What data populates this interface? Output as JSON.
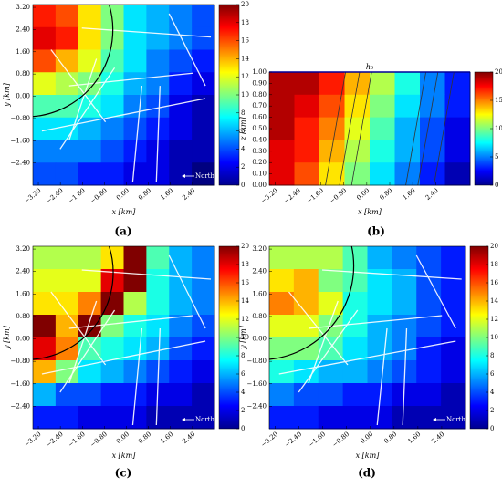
{
  "chart_data": [
    {
      "type": "heatmap",
      "panel_label": "(a)",
      "xlabel": "x [km]",
      "ylabel": "y [km]",
      "annotation": "North",
      "colormap": "jet",
      "xlim": [
        -3.4,
        3.2
      ],
      "ylim": [
        -3.2,
        3.3
      ],
      "clim": [
        0,
        20
      ],
      "xticks": [
        {
          "value": -3.2,
          "label": "−3.20"
        },
        {
          "value": -2.4,
          "label": "−2.40"
        },
        {
          "value": -1.6,
          "label": "−1.60"
        },
        {
          "value": -0.8,
          "label": "−0.80"
        },
        {
          "value": 0,
          "label": "0.00"
        },
        {
          "value": 0.8,
          "label": "0.80"
        },
        {
          "value": 1.6,
          "label": "1.60"
        },
        {
          "value": 2.4,
          "label": "2.40"
        }
      ],
      "yticks": [
        {
          "value": 3.2,
          "label": "3.20"
        },
        {
          "value": 2.4,
          "label": "2.40"
        },
        {
          "value": 1.6,
          "label": "1.60"
        },
        {
          "value": 0.8,
          "label": "0.80"
        },
        {
          "value": 0,
          "label": "0.00"
        },
        {
          "value": -0.8,
          "label": "−0.80"
        },
        {
          "value": -1.6,
          "label": "−1.60"
        },
        {
          "value": -2.4,
          "label": "−2.40"
        }
      ],
      "cticks": [
        0,
        2,
        4,
        6,
        8,
        10,
        12,
        14,
        16,
        18,
        20
      ],
      "z": [
        [
          17,
          16,
          13,
          10,
          7,
          6,
          5,
          4
        ],
        [
          18,
          17,
          13,
          10,
          7,
          6,
          5,
          4
        ],
        [
          16,
          14,
          12,
          9,
          7,
          5,
          4,
          3
        ],
        [
          12,
          11,
          10,
          8,
          6,
          5,
          3,
          2
        ],
        [
          9,
          9,
          8,
          7,
          5,
          4,
          2,
          1
        ],
        [
          7,
          7,
          6,
          5,
          4,
          3,
          2,
          1
        ],
        [
          5,
          5,
          5,
          4,
          3,
          2,
          1,
          1
        ],
        [
          4,
          4,
          3,
          3,
          2,
          2,
          1,
          0
        ]
      ]
    },
    {
      "type": "heatmap",
      "panel_label": "(b)",
      "title": "h₀",
      "xlabel": "x [km]",
      "ylabel": "z [km]",
      "colormap": "jet",
      "xlim": [
        -3.4,
        3.6
      ],
      "ylim": [
        0,
        1
      ],
      "clim": [
        0,
        20
      ],
      "xticks": [
        {
          "value": -3.2,
          "label": "−3.20"
        },
        {
          "value": -2.4,
          "label": "−2.40"
        },
        {
          "value": -1.6,
          "label": "−1.60"
        },
        {
          "value": -0.8,
          "label": "−0.80"
        },
        {
          "value": 0,
          "label": "0.00"
        },
        {
          "value": 0.8,
          "label": "0.80"
        },
        {
          "value": 1.6,
          "label": "1.60"
        },
        {
          "value": 2.4,
          "label": "2.40"
        }
      ],
      "yticks": [
        {
          "value": 1,
          "label": "1.00"
        },
        {
          "value": 0.9,
          "label": "0.90"
        },
        {
          "value": 0.8,
          "label": "0.80"
        },
        {
          "value": 0.7,
          "label": "0.70"
        },
        {
          "value": 0.6,
          "label": "0.60"
        },
        {
          "value": 0.5,
          "label": "0.50"
        },
        {
          "value": 0.4,
          "label": "0.40"
        },
        {
          "value": 0.3,
          "label": "0.30"
        },
        {
          "value": 0.2,
          "label": "0.20"
        },
        {
          "value": 0.1,
          "label": "0.10"
        },
        {
          "value": 0,
          "label": "0.00"
        }
      ],
      "cticks": [
        0,
        5,
        10,
        15,
        20
      ],
      "z": [
        [
          19,
          19,
          17,
          14,
          11,
          8,
          5,
          3
        ],
        [
          19,
          18,
          16,
          13,
          10,
          7,
          5,
          3
        ],
        [
          19,
          17,
          15,
          12,
          9,
          6,
          4,
          2
        ],
        [
          18,
          17,
          14,
          11,
          8,
          6,
          4,
          2
        ],
        [
          18,
          16,
          13,
          10,
          7,
          5,
          3,
          1
        ]
      ]
    },
    {
      "type": "heatmap",
      "panel_label": "(c)",
      "xlabel": "x [km]",
      "ylabel": "y [km]",
      "annotation": "North",
      "colormap": "jet",
      "xlim": [
        -3.4,
        3.2
      ],
      "ylim": [
        -3.2,
        3.3
      ],
      "clim": [
        0,
        20
      ],
      "xticks": [
        {
          "value": -3.2,
          "label": "−3.20"
        },
        {
          "value": -2.4,
          "label": "−2.40"
        },
        {
          "value": -1.6,
          "label": "−1.60"
        },
        {
          "value": -0.8,
          "label": "−0.80"
        },
        {
          "value": 0,
          "label": "0.00"
        },
        {
          "value": 0.8,
          "label": "0.80"
        },
        {
          "value": 1.6,
          "label": "1.60"
        },
        {
          "value": 2.4,
          "label": "2.40"
        }
      ],
      "yticks": [
        {
          "value": 3.2,
          "label": "3.20"
        },
        {
          "value": 2.4,
          "label": "2.40"
        },
        {
          "value": 1.6,
          "label": "1.60"
        },
        {
          "value": 0.8,
          "label": "0.80"
        },
        {
          "value": 0,
          "label": "0.00"
        },
        {
          "value": -0.8,
          "label": "−0.80"
        },
        {
          "value": -1.6,
          "label": "−1.60"
        },
        {
          "value": -2.4,
          "label": "−2.40"
        }
      ],
      "cticks": [
        0,
        2,
        4,
        6,
        8,
        10,
        12,
        14,
        16,
        18,
        20
      ],
      "z": [
        [
          11,
          11,
          11,
          13,
          20,
          9,
          6,
          5
        ],
        [
          12,
          12,
          12,
          18,
          20,
          8,
          6,
          5
        ],
        [
          13,
          13,
          15,
          20,
          11,
          8,
          6,
          5
        ],
        [
          20,
          14,
          20,
          10,
          8,
          7,
          5,
          4
        ],
        [
          18,
          15,
          9,
          8,
          7,
          6,
          4,
          3
        ],
        [
          14,
          10,
          7,
          6,
          5,
          4,
          3,
          2
        ],
        [
          6,
          4,
          4,
          3,
          3,
          2,
          2,
          1
        ],
        [
          3,
          3,
          2,
          2,
          2,
          1,
          1,
          1
        ]
      ]
    },
    {
      "type": "heatmap",
      "panel_label": "(d)",
      "xlabel": "x [km]",
      "ylabel": "y [km]",
      "annotation": "North",
      "colormap": "jet",
      "xlim": [
        -3.4,
        3.2
      ],
      "ylim": [
        -3.2,
        3.3
      ],
      "clim": [
        0,
        20
      ],
      "xticks": [
        {
          "value": -3.2,
          "label": "−3.20"
        },
        {
          "value": -2.4,
          "label": "−2.40"
        },
        {
          "value": -1.6,
          "label": "−1.60"
        },
        {
          "value": -0.8,
          "label": "−0.80"
        },
        {
          "value": 0,
          "label": "0.00"
        },
        {
          "value": 0.8,
          "label": "0.80"
        },
        {
          "value": 1.6,
          "label": "1.60"
        },
        {
          "value": 2.4,
          "label": "2.40"
        }
      ],
      "yticks": [
        {
          "value": 3.2,
          "label": "3.20"
        },
        {
          "value": 2.4,
          "label": "2.40"
        },
        {
          "value": 1.6,
          "label": "1.60"
        },
        {
          "value": 0.8,
          "label": "0.80"
        },
        {
          "value": 0,
          "label": "0.00"
        },
        {
          "value": -0.8,
          "label": "−0.80"
        },
        {
          "value": -1.6,
          "label": "−1.60"
        },
        {
          "value": -2.4,
          "label": "−2.40"
        }
      ],
      "cticks": [
        0,
        2,
        4,
        6,
        8,
        10,
        12,
        14,
        16,
        18,
        20
      ],
      "z": [
        [
          11,
          11,
          11,
          9,
          6,
          5,
          4,
          3
        ],
        [
          13,
          14,
          10,
          9,
          7,
          6,
          4,
          3
        ],
        [
          15,
          14,
          12,
          8,
          7,
          6,
          4,
          3
        ],
        [
          12,
          12,
          10,
          8,
          6,
          5,
          4,
          3
        ],
        [
          10,
          10,
          9,
          7,
          6,
          5,
          3,
          2
        ],
        [
          8,
          7,
          6,
          6,
          5,
          4,
          3,
          2
        ],
        [
          5,
          4,
          4,
          3,
          3,
          2,
          2,
          1
        ],
        [
          3,
          3,
          2,
          2,
          2,
          1,
          1,
          1
        ]
      ]
    }
  ]
}
